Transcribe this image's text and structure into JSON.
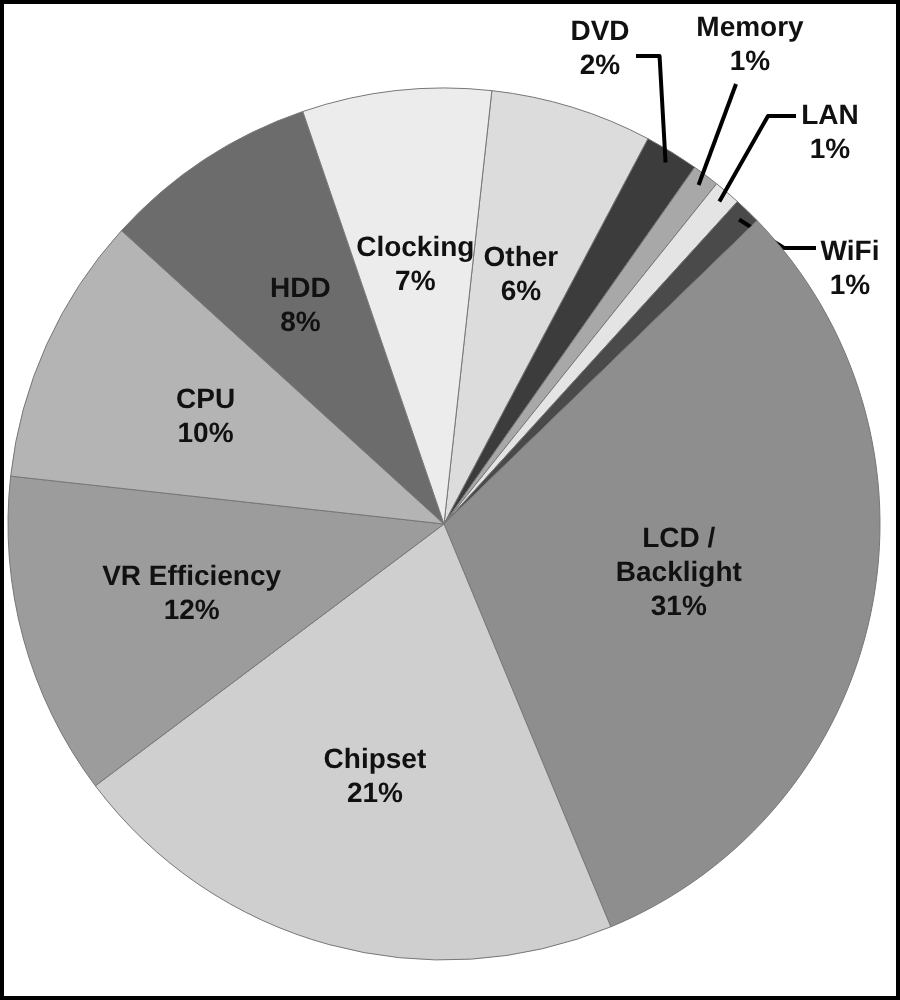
{
  "chart_data": {
    "type": "pie",
    "categories": [
      "Other",
      "DVD",
      "Memory",
      "LAN",
      "WiFi",
      "LCD / Backlight",
      "Chipset",
      "VR Efficiency",
      "CPU",
      "HDD",
      "Clocking"
    ],
    "values": [
      6,
      2,
      1,
      1,
      1,
      31,
      21,
      12,
      10,
      8,
      7
    ],
    "value_labels": [
      "6%",
      "2%",
      "1%",
      "1%",
      "1%",
      "31%",
      "21%",
      "12%",
      "10%",
      "8%",
      "7%"
    ],
    "colors": [
      "#dcdcdc",
      "#3c3c3c",
      "#a8a8a8",
      "#e4e4e4",
      "#4a4a4a",
      "#8e8e8e",
      "#cfcfcf",
      "#9c9c9c",
      "#b4b4b4",
      "#6c6c6c",
      "#ececec"
    ]
  }
}
